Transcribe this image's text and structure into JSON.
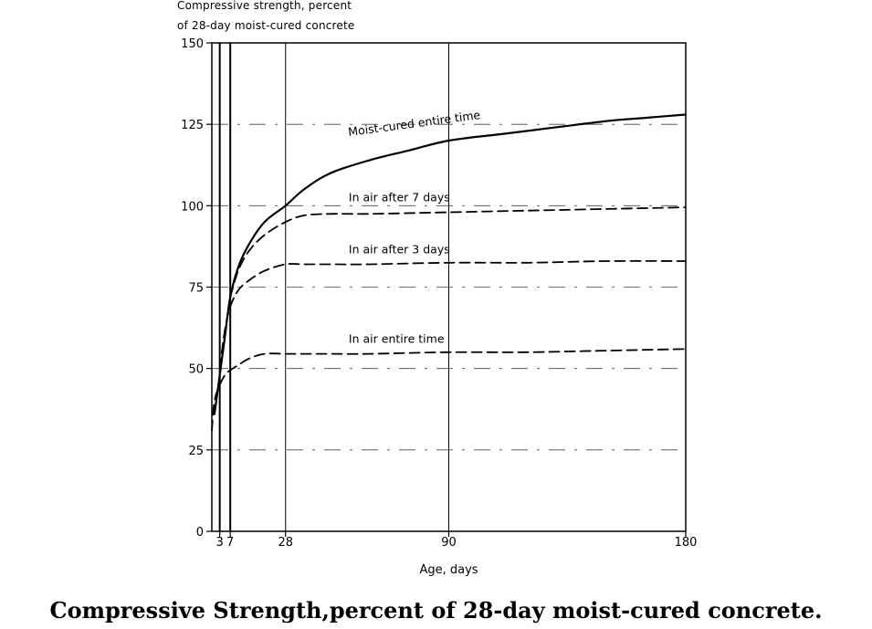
{
  "chart_data": {
    "type": "line",
    "title": "Compressive Strength,percent of 28-day moist-cured concrete.",
    "ylabel": [
      "Compressive strength, percent",
      "of 28-day moist-cured concrete"
    ],
    "xlabel": "Age, days",
    "xlim": [
      0,
      180
    ],
    "ylim": [
      0,
      150
    ],
    "x_ticks": [
      3,
      7,
      28,
      90,
      180
    ],
    "y_ticks": [
      0,
      25,
      50,
      75,
      100,
      125,
      150
    ],
    "grid": true,
    "series": [
      {
        "name": "Moist-cured entire time",
        "style": "solid",
        "x": [
          1,
          3,
          5,
          7,
          10,
          14,
          20,
          28,
          35,
          45,
          60,
          75,
          90,
          110,
          130,
          150,
          165,
          180
        ],
        "y": [
          36,
          48,
          60,
          72,
          81,
          88,
          95,
          100,
          105,
          110,
          114,
          117,
          120,
          122,
          124,
          126,
          127,
          128
        ]
      },
      {
        "name": "In air after 7 days",
        "style": "dashed",
        "x": [
          7,
          10,
          14,
          20,
          28,
          35,
          45,
          60,
          90,
          120,
          150,
          180
        ],
        "y": [
          72,
          80,
          86,
          91,
          95,
          97,
          97.5,
          97.5,
          98,
          98.5,
          99,
          99.5
        ]
      },
      {
        "name": "In air after 3 days",
        "style": "dashed",
        "x": [
          3,
          5,
          7,
          10,
          14,
          20,
          28,
          35,
          45,
          60,
          90,
          120,
          150,
          180
        ],
        "y": [
          50,
          62,
          69,
          74,
          77,
          80,
          82,
          82,
          82,
          82,
          82.5,
          82.5,
          83,
          83
        ]
      },
      {
        "name": "In air entire time",
        "style": "dashed",
        "x": [
          0,
          1,
          3,
          5,
          7,
          10,
          14,
          20,
          28,
          35,
          45,
          60,
          90,
          120,
          150,
          180
        ],
        "y": [
          31,
          40,
          45,
          48,
          49.5,
          51,
          53,
          54.5,
          54.5,
          54.5,
          54.5,
          54.5,
          55,
          55,
          55.5,
          56
        ]
      }
    ]
  }
}
